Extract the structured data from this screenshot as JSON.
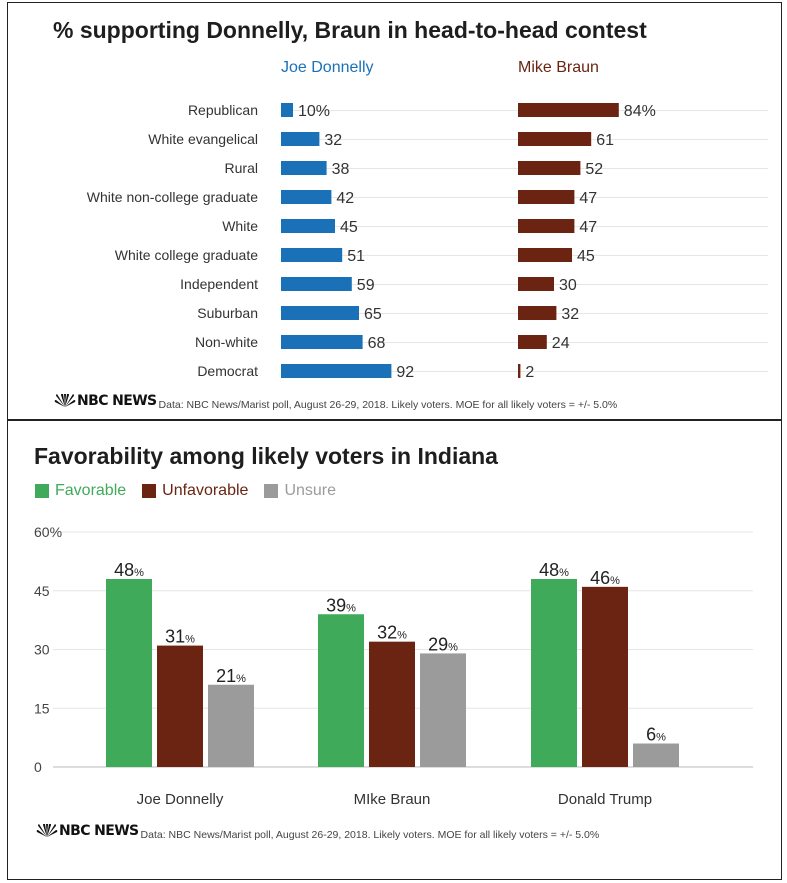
{
  "colors": {
    "donnelly": "#1a71b8",
    "braun": "#6b2411",
    "favorable": "#3faa5a",
    "unfavorable": "#6b2411",
    "unsure": "#9b9b9b"
  },
  "panel1": {
    "title": "% supporting Donnelly, Braun in head-to-head contest",
    "logo_text": "NBC NEWS",
    "source": "Data: NBC News/Marist poll, August 26-29, 2018. Likely voters. MOE for all likely voters = +/- 5.0%"
  },
  "panel2": {
    "title": "Favorability among likely voters in Indiana",
    "logo_text": "NBC NEWS",
    "source": "Data: NBC News/Marist poll, August 26-29, 2018. Likely voters. MOE for all likely voters = +/- 5.0%"
  },
  "chart_data": [
    {
      "type": "bar",
      "orientation": "horizontal",
      "title": "% supporting Donnelly, Braun in head-to-head contest",
      "categories": [
        "Republican",
        "White evangelical",
        "Rural",
        "White non-college graduate",
        "White",
        "White college graduate",
        "Independent",
        "Suburban",
        "Non-white",
        "Democrat"
      ],
      "series": [
        {
          "name": "Joe Donnelly",
          "values": [
            10,
            32,
            38,
            42,
            45,
            51,
            59,
            65,
            68,
            92
          ],
          "labels": [
            "10%",
            "32",
            "38",
            "42",
            "45",
            "51",
            "59",
            "65",
            "68",
            "92"
          ]
        },
        {
          "name": "Mike Braun",
          "values": [
            84,
            61,
            52,
            47,
            47,
            45,
            30,
            32,
            24,
            2
          ],
          "labels": [
            "84%",
            "61",
            "52",
            "47",
            "47",
            "45",
            "30",
            "32",
            "24",
            "2"
          ]
        }
      ],
      "xlim": [
        0,
        100
      ],
      "grid": true
    },
    {
      "type": "bar",
      "title": "Favorability among likely voters in Indiana",
      "categories": [
        "Joe Donnelly",
        "MIke Braun",
        "Donald Trump"
      ],
      "series": [
        {
          "name": "Favorable",
          "values": [
            48,
            39,
            48
          ]
        },
        {
          "name": "Unfavorable",
          "values": [
            31,
            32,
            46
          ]
        },
        {
          "name": "Unsure",
          "values": [
            21,
            29,
            6
          ]
        }
      ],
      "value_suffix": "%",
      "yticks": [
        "60%",
        "45",
        "30",
        "15",
        "0"
      ],
      "ylim": [
        0,
        60
      ],
      "legend": "top-left",
      "grid": true
    }
  ]
}
